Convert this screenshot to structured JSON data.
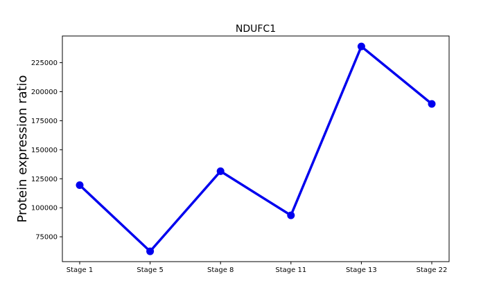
{
  "chart_data": {
    "type": "line",
    "title": "NDUFC1",
    "xlabel": "",
    "ylabel": "Protein expression ratio",
    "categories": [
      "Stage 1",
      "Stage 5",
      "Stage 8",
      "Stage 11",
      "Stage 13",
      "Stage 22"
    ],
    "series": [
      {
        "values": [
          119500,
          62500,
          131500,
          93500,
          239000,
          189500
        ],
        "color": "#0000ee"
      }
    ],
    "yticks": [
      75000,
      100000,
      125000,
      150000,
      175000,
      200000,
      225000
    ],
    "ylim": [
      53600,
      248000
    ],
    "grid": false,
    "legend": "none"
  }
}
